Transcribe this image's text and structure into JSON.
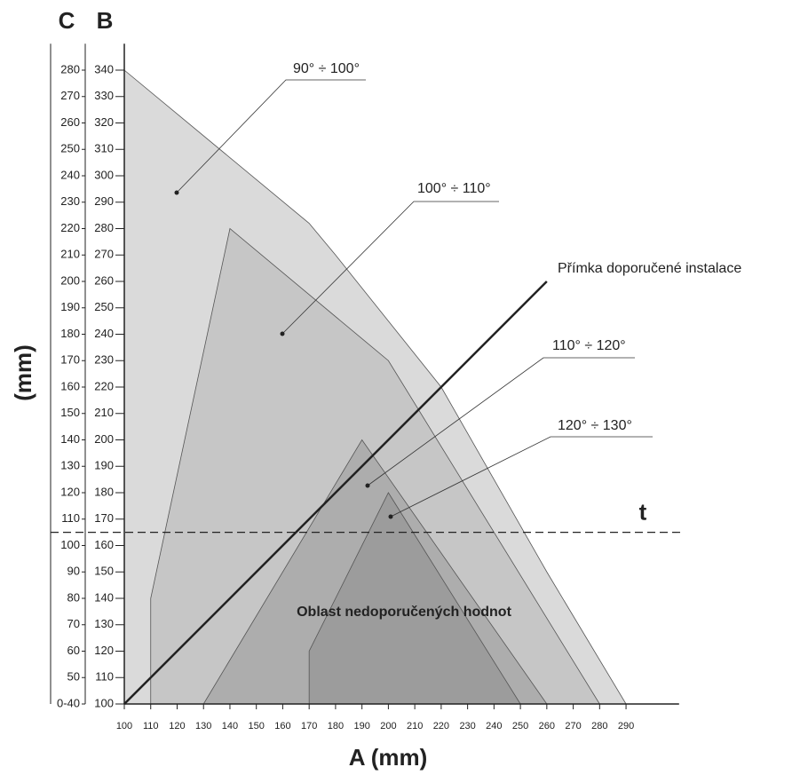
{
  "chart_data": {
    "type": "region",
    "xlabel": "A (mm)",
    "ylabel": "(mm)",
    "ylabel_b": "B",
    "ylabel_c": "C",
    "xlim": [
      100,
      300
    ],
    "xticks": [
      100,
      110,
      120,
      130,
      140,
      150,
      160,
      170,
      180,
      190,
      200,
      210,
      220,
      230,
      240,
      250,
      260,
      270,
      280,
      290
    ],
    "ylim": [
      100,
      350
    ],
    "yticks": [
      100,
      110,
      120,
      130,
      140,
      150,
      160,
      170,
      180,
      190,
      200,
      210,
      220,
      230,
      240,
      250,
      260,
      270,
      280,
      290,
      300,
      310,
      320,
      330,
      340
    ],
    "y2lim": [
      40,
      290
    ],
    "y2ticks": [
      {
        "value": 40,
        "label": "0-40"
      },
      50,
      60,
      70,
      80,
      90,
      100,
      110,
      120,
      130,
      140,
      150,
      160,
      170,
      180,
      190,
      200,
      210,
      220,
      230,
      240,
      250,
      260,
      270,
      280
    ],
    "series": [
      {
        "name": "90° ÷ 100°",
        "color": "#dadada",
        "x": [
          100,
          170,
          180,
          220,
          260,
          290,
          100
        ],
        "values": [
          340,
          282,
          270,
          220,
          150,
          100,
          100
        ]
      },
      {
        "name": "100° ÷ 110°",
        "color": "#c6c6c6",
        "x": [
          110,
          110,
          140,
          200,
          280,
          110
        ],
        "values": [
          100,
          140,
          280,
          230,
          100,
          100
        ]
      },
      {
        "name": "110° ÷ 120°",
        "color": "#adadad",
        "x": [
          130,
          190,
          260,
          130
        ],
        "values": [
          100,
          200,
          100,
          100
        ]
      },
      {
        "name": "120° ÷ 130°",
        "color": "#9c9c9c",
        "x": [
          170,
          170,
          200,
          250,
          170
        ],
        "values": [
          100,
          120,
          180,
          100,
          100
        ]
      }
    ],
    "line": {
      "name": "Přímka doporučené instalace",
      "color": "#222222",
      "x": [
        100,
        260
      ],
      "values": [
        100,
        260
      ]
    },
    "threshold": {
      "name": "t",
      "value": 165
    },
    "annotation": "Oblast nedoporučených hodnot"
  }
}
